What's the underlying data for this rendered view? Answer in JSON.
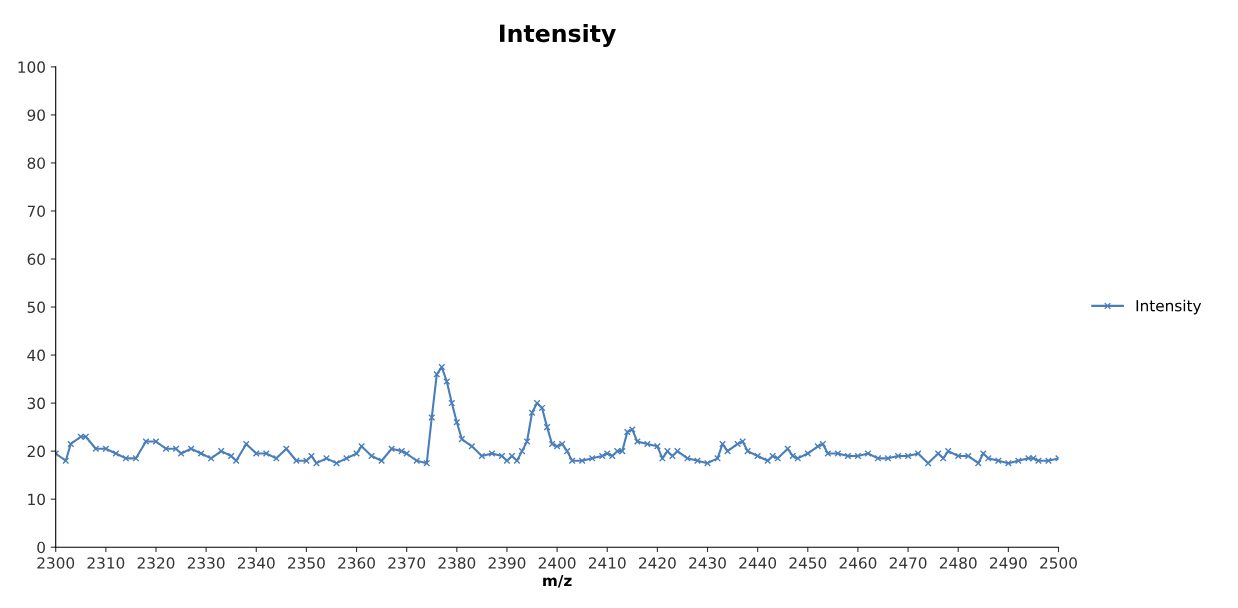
{
  "chart_data": {
    "type": "line",
    "title": "Intensity",
    "xlabel": "m/z",
    "x": [
      2300,
      2302,
      2303,
      2305,
      2306,
      2308,
      2310,
      2312,
      2314,
      2316,
      2318,
      2320,
      2322,
      2324,
      2325,
      2327,
      2329,
      2331,
      2333,
      2335,
      2336,
      2338,
      2340,
      2342,
      2344,
      2346,
      2348,
      2350,
      2351,
      2352,
      2354,
      2356,
      2358,
      2360,
      2361,
      2363,
      2365,
      2367,
      2369,
      2370,
      2372,
      2374,
      2375,
      2376,
      2377,
      2378,
      2379,
      2380,
      2381,
      2383,
      2385,
      2387,
      2389,
      2390,
      2391,
      2392,
      2393,
      2394,
      2395,
      2396,
      2397,
      2398,
      2399,
      2400,
      2401,
      2402,
      2403,
      2405,
      2407,
      2409,
      2410,
      2411,
      2412,
      2413,
      2414,
      2415,
      2416,
      2418,
      2420,
      2421,
      2422,
      2423,
      2424,
      2426,
      2428,
      2430,
      2432,
      2433,
      2434,
      2436,
      2437,
      2438,
      2440,
      2442,
      2443,
      2444,
      2446,
      2447,
      2448,
      2450,
      2452,
      2453,
      2454,
      2456,
      2458,
      2460,
      2462,
      2464,
      2466,
      2468,
      2470,
      2472,
      2474,
      2476,
      2477,
      2478,
      2480,
      2482,
      2484,
      2485,
      2486,
      2488,
      2490,
      2492,
      2494,
      2495,
      2496,
      2498,
      2500
    ],
    "series": [
      {
        "name": "Intensity",
        "color": "#4a7ebb",
        "values": [
          19.5,
          18,
          21.5,
          23,
          23,
          20.5,
          20.5,
          19.5,
          18.5,
          18.5,
          22,
          22,
          20.5,
          20.5,
          19.5,
          20.5,
          19.5,
          18.5,
          20,
          19,
          18,
          21.5,
          19.5,
          19.5,
          18.5,
          20.5,
          18,
          18,
          19,
          17.5,
          18.5,
          17.5,
          18.5,
          19.5,
          21,
          19,
          18,
          20.5,
          20,
          19.5,
          18,
          17.5,
          27,
          36,
          37.5,
          34.5,
          30,
          26,
          22.5,
          21,
          19,
          19.5,
          19,
          18,
          19,
          18,
          20,
          22,
          28,
          30,
          29,
          25,
          21.5,
          21,
          21.5,
          20,
          18,
          18,
          18.5,
          19,
          19.5,
          19,
          20,
          20,
          24,
          24.5,
          22,
          21.5,
          21,
          18.5,
          20,
          19,
          20,
          18.5,
          18,
          17.5,
          18.5,
          21.5,
          20,
          21.5,
          22,
          20,
          19,
          18,
          19,
          18.5,
          20.5,
          19,
          18.5,
          19.5,
          21,
          21.5,
          19.5,
          19.5,
          19,
          19,
          19.5,
          18.5,
          18.5,
          19,
          19,
          19.5,
          17.5,
          19.5,
          18.5,
          20,
          19,
          19,
          17.5,
          19.5,
          18.5,
          18,
          17.5,
          18,
          18.5,
          18.5,
          18,
          18,
          18.5
        ]
      }
    ],
    "xlim": [
      2300,
      2500
    ],
    "xticks": [
      2300,
      2310,
      2320,
      2330,
      2340,
      2350,
      2360,
      2370,
      2380,
      2390,
      2400,
      2410,
      2420,
      2430,
      2440,
      2450,
      2460,
      2470,
      2480,
      2490,
      2500
    ],
    "ylim": [
      0,
      100
    ],
    "yticks": [
      0,
      10,
      20,
      30,
      40,
      50,
      60,
      70,
      80,
      90,
      100
    ],
    "grid": false,
    "legend": "right",
    "marker": "cross",
    "line_style": "solid"
  }
}
